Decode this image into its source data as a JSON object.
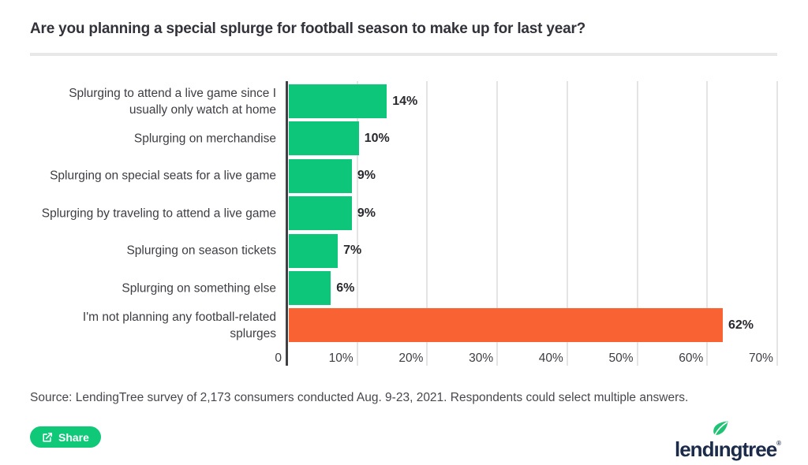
{
  "title": "Are you planning a special splurge for football season to make up for last year?",
  "chart_data": {
    "type": "bar",
    "orientation": "horizontal",
    "categories": [
      "Splurging to attend a live game since I usually only watch at home",
      "Splurging on merchandise",
      "Splurging on special seats for a live game",
      "Splurging by traveling to attend a live game",
      "Splurging on season tickets",
      "Splurging on something else",
      "I'm not planning any football-related splurges"
    ],
    "values": [
      14,
      10,
      9,
      9,
      7,
      6,
      62
    ],
    "value_labels": [
      "14%",
      "10%",
      "9%",
      "9%",
      "7%",
      "6%",
      "62%"
    ],
    "bar_colors": [
      "#0ec67a",
      "#0ec67a",
      "#0ec67a",
      "#0ec67a",
      "#0ec67a",
      "#0ec67a",
      "#f96232"
    ],
    "xlabel": "",
    "ylabel": "",
    "xlim": [
      0,
      70
    ],
    "x_tick_values": [
      0,
      10,
      20,
      30,
      40,
      50,
      60,
      70
    ],
    "x_tick_labels": [
      "0",
      "10%",
      "20%",
      "30%",
      "40%",
      "50%",
      "60%",
      "70%"
    ],
    "grid": true,
    "legend": false
  },
  "colors": {
    "green": "#0ec67a",
    "orange": "#f96232",
    "share_button": "#0fc878",
    "logo_navy": "#1c2b4a",
    "gridline": "#e4e4e4",
    "axis": "#3f3f44"
  },
  "source": "Source: LendingTree survey of 2,173 consumers conducted Aug. 9-23, 2021. Respondents could select multiple answers.",
  "share_button": {
    "label": "Share"
  },
  "logo": {
    "text_left": "lend",
    "text_i": "ı",
    "text_right": "ngtree",
    "registered": "®"
  }
}
